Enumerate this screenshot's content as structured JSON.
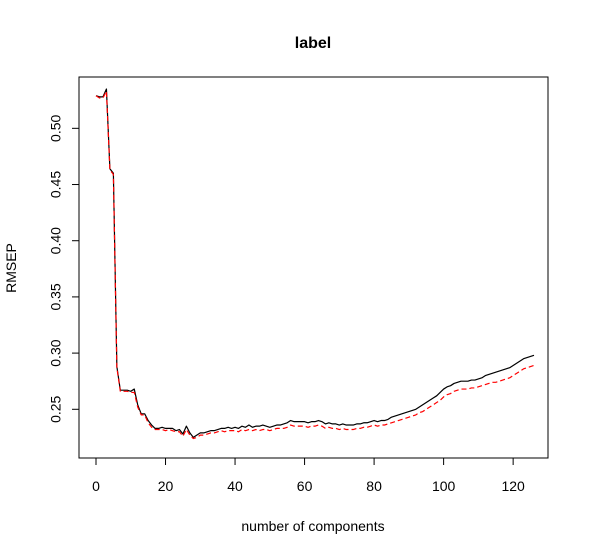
{
  "chart_data": {
    "type": "line",
    "title": "label",
    "xlabel": "number of components",
    "ylabel": "RMSEP",
    "xlim": [
      0,
      126
    ],
    "ylim": [
      0.212,
      0.543
    ],
    "xticks": [
      0,
      20,
      40,
      60,
      80,
      100,
      120
    ],
    "yticks": [
      0.25,
      0.3,
      0.35,
      0.4,
      0.45,
      0.5
    ],
    "xtick_labels": [
      "0",
      "20",
      "40",
      "60",
      "80",
      "100",
      "120"
    ],
    "ytick_labels": [
      "0.25",
      "0.30",
      "0.35",
      "0.40",
      "0.45",
      "0.50"
    ],
    "grid": false,
    "legend": "none",
    "series": [
      {
        "color": "#000000",
        "linestyle": "solid",
        "points": [
          [
            0,
            0.529
          ],
          [
            1,
            0.528
          ],
          [
            2,
            0.528
          ],
          [
            3,
            0.535
          ],
          [
            4,
            0.464
          ],
          [
            5,
            0.46
          ],
          [
            6,
            0.288
          ],
          [
            7,
            0.267
          ],
          [
            8,
            0.267
          ],
          [
            9,
            0.267
          ],
          [
            10,
            0.266
          ],
          [
            11,
            0.268
          ],
          [
            12,
            0.254
          ],
          [
            13,
            0.246
          ],
          [
            14,
            0.246
          ],
          [
            15,
            0.24
          ],
          [
            16,
            0.236
          ],
          [
            17,
            0.233
          ],
          [
            18,
            0.233
          ],
          [
            19,
            0.234
          ],
          [
            20,
            0.233
          ],
          [
            21,
            0.233
          ],
          [
            22,
            0.233
          ],
          [
            23,
            0.231
          ],
          [
            24,
            0.232
          ],
          [
            25,
            0.228
          ],
          [
            26,
            0.235
          ],
          [
            27,
            0.229
          ],
          [
            28,
            0.225
          ],
          [
            29,
            0.227
          ],
          [
            30,
            0.229
          ],
          [
            31,
            0.229
          ],
          [
            32,
            0.23
          ],
          [
            33,
            0.231
          ],
          [
            34,
            0.231
          ],
          [
            35,
            0.232
          ],
          [
            36,
            0.233
          ],
          [
            37,
            0.233
          ],
          [
            38,
            0.234
          ],
          [
            39,
            0.233
          ],
          [
            40,
            0.234
          ],
          [
            41,
            0.233
          ],
          [
            42,
            0.235
          ],
          [
            43,
            0.234
          ],
          [
            44,
            0.236
          ],
          [
            45,
            0.234
          ],
          [
            46,
            0.235
          ],
          [
            47,
            0.235
          ],
          [
            48,
            0.236
          ],
          [
            49,
            0.235
          ],
          [
            50,
            0.234
          ],
          [
            51,
            0.235
          ],
          [
            52,
            0.236
          ],
          [
            53,
            0.236
          ],
          [
            54,
            0.237
          ],
          [
            55,
            0.238
          ],
          [
            56,
            0.24
          ],
          [
            57,
            0.239
          ],
          [
            58,
            0.239
          ],
          [
            59,
            0.239
          ],
          [
            60,
            0.239
          ],
          [
            61,
            0.238
          ],
          [
            62,
            0.239
          ],
          [
            63,
            0.239
          ],
          [
            64,
            0.24
          ],
          [
            65,
            0.239
          ],
          [
            66,
            0.237
          ],
          [
            67,
            0.238
          ],
          [
            68,
            0.237
          ],
          [
            69,
            0.237
          ],
          [
            70,
            0.236
          ],
          [
            71,
            0.237
          ],
          [
            72,
            0.236
          ],
          [
            73,
            0.236
          ],
          [
            74,
            0.236
          ],
          [
            75,
            0.237
          ],
          [
            76,
            0.237
          ],
          [
            77,
            0.238
          ],
          [
            78,
            0.238
          ],
          [
            79,
            0.239
          ],
          [
            80,
            0.24
          ],
          [
            81,
            0.239
          ],
          [
            82,
            0.24
          ],
          [
            83,
            0.24
          ],
          [
            84,
            0.241
          ],
          [
            85,
            0.243
          ],
          [
            86,
            0.244
          ],
          [
            87,
            0.245
          ],
          [
            88,
            0.246
          ],
          [
            89,
            0.247
          ],
          [
            90,
            0.248
          ],
          [
            91,
            0.249
          ],
          [
            92,
            0.25
          ],
          [
            93,
            0.252
          ],
          [
            94,
            0.254
          ],
          [
            95,
            0.256
          ],
          [
            96,
            0.258
          ],
          [
            97,
            0.26
          ],
          [
            98,
            0.262
          ],
          [
            99,
            0.265
          ],
          [
            100,
            0.268
          ],
          [
            101,
            0.27
          ],
          [
            102,
            0.271
          ],
          [
            103,
            0.273
          ],
          [
            104,
            0.274
          ],
          [
            105,
            0.275
          ],
          [
            106,
            0.275
          ],
          [
            107,
            0.275
          ],
          [
            108,
            0.276
          ],
          [
            109,
            0.276
          ],
          [
            110,
            0.277
          ],
          [
            111,
            0.278
          ],
          [
            112,
            0.28
          ],
          [
            113,
            0.281
          ],
          [
            114,
            0.282
          ],
          [
            115,
            0.283
          ],
          [
            116,
            0.284
          ],
          [
            117,
            0.285
          ],
          [
            118,
            0.286
          ],
          [
            119,
            0.287
          ],
          [
            120,
            0.289
          ],
          [
            121,
            0.291
          ],
          [
            122,
            0.293
          ],
          [
            123,
            0.295
          ],
          [
            124,
            0.296
          ],
          [
            125,
            0.297
          ],
          [
            126,
            0.298
          ]
        ]
      },
      {
        "color": "#ff0000",
        "linestyle": "dashed",
        "points": [
          [
            0,
            0.529
          ],
          [
            1,
            0.527
          ],
          [
            2,
            0.527
          ],
          [
            3,
            0.533
          ],
          [
            4,
            0.463
          ],
          [
            5,
            0.459
          ],
          [
            6,
            0.287
          ],
          [
            7,
            0.266
          ],
          [
            8,
            0.266
          ],
          [
            9,
            0.266
          ],
          [
            10,
            0.265
          ],
          [
            11,
            0.265
          ],
          [
            12,
            0.252
          ],
          [
            13,
            0.245
          ],
          [
            14,
            0.245
          ],
          [
            15,
            0.238
          ],
          [
            16,
            0.234
          ],
          [
            17,
            0.232
          ],
          [
            18,
            0.232
          ],
          [
            19,
            0.232
          ],
          [
            20,
            0.231
          ],
          [
            21,
            0.232
          ],
          [
            22,
            0.231
          ],
          [
            23,
            0.23
          ],
          [
            24,
            0.23
          ],
          [
            25,
            0.226
          ],
          [
            26,
            0.232
          ],
          [
            27,
            0.227
          ],
          [
            28,
            0.224
          ],
          [
            29,
            0.225
          ],
          [
            30,
            0.227
          ],
          [
            31,
            0.227
          ],
          [
            32,
            0.228
          ],
          [
            33,
            0.229
          ],
          [
            34,
            0.229
          ],
          [
            35,
            0.23
          ],
          [
            36,
            0.231
          ],
          [
            37,
            0.23
          ],
          [
            38,
            0.231
          ],
          [
            39,
            0.231
          ],
          [
            40,
            0.231
          ],
          [
            41,
            0.23
          ],
          [
            42,
            0.232
          ],
          [
            43,
            0.231
          ],
          [
            44,
            0.232
          ],
          [
            45,
            0.231
          ],
          [
            46,
            0.232
          ],
          [
            47,
            0.231
          ],
          [
            48,
            0.232
          ],
          [
            49,
            0.232
          ],
          [
            50,
            0.231
          ],
          [
            51,
            0.232
          ],
          [
            52,
            0.233
          ],
          [
            53,
            0.233
          ],
          [
            54,
            0.233
          ],
          [
            55,
            0.234
          ],
          [
            56,
            0.236
          ],
          [
            57,
            0.235
          ],
          [
            58,
            0.235
          ],
          [
            59,
            0.235
          ],
          [
            60,
            0.235
          ],
          [
            61,
            0.234
          ],
          [
            62,
            0.235
          ],
          [
            63,
            0.235
          ],
          [
            64,
            0.236
          ],
          [
            65,
            0.235
          ],
          [
            66,
            0.233
          ],
          [
            67,
            0.234
          ],
          [
            68,
            0.233
          ],
          [
            69,
            0.233
          ],
          [
            70,
            0.232
          ],
          [
            71,
            0.233
          ],
          [
            72,
            0.232
          ],
          [
            73,
            0.232
          ],
          [
            74,
            0.232
          ],
          [
            75,
            0.233
          ],
          [
            76,
            0.233
          ],
          [
            77,
            0.234
          ],
          [
            78,
            0.234
          ],
          [
            79,
            0.235
          ],
          [
            80,
            0.236
          ],
          [
            81,
            0.235
          ],
          [
            82,
            0.236
          ],
          [
            83,
            0.236
          ],
          [
            84,
            0.237
          ],
          [
            85,
            0.238
          ],
          [
            86,
            0.239
          ],
          [
            87,
            0.24
          ],
          [
            88,
            0.241
          ],
          [
            89,
            0.242
          ],
          [
            90,
            0.243
          ],
          [
            91,
            0.244
          ],
          [
            92,
            0.245
          ],
          [
            93,
            0.247
          ],
          [
            94,
            0.248
          ],
          [
            95,
            0.25
          ],
          [
            96,
            0.252
          ],
          [
            97,
            0.254
          ],
          [
            98,
            0.256
          ],
          [
            99,
            0.258
          ],
          [
            100,
            0.261
          ],
          [
            101,
            0.263
          ],
          [
            102,
            0.264
          ],
          [
            103,
            0.266
          ],
          [
            104,
            0.267
          ],
          [
            105,
            0.268
          ],
          [
            106,
            0.268
          ],
          [
            107,
            0.268
          ],
          [
            108,
            0.269
          ],
          [
            109,
            0.269
          ],
          [
            110,
            0.27
          ],
          [
            111,
            0.271
          ],
          [
            112,
            0.272
          ],
          [
            113,
            0.273
          ],
          [
            114,
            0.274
          ],
          [
            115,
            0.274
          ],
          [
            116,
            0.275
          ],
          [
            117,
            0.276
          ],
          [
            118,
            0.277
          ],
          [
            119,
            0.278
          ],
          [
            120,
            0.28
          ],
          [
            121,
            0.282
          ],
          [
            122,
            0.284
          ],
          [
            123,
            0.286
          ],
          [
            124,
            0.287
          ],
          [
            125,
            0.288
          ],
          [
            126,
            0.289
          ]
        ]
      }
    ]
  }
}
